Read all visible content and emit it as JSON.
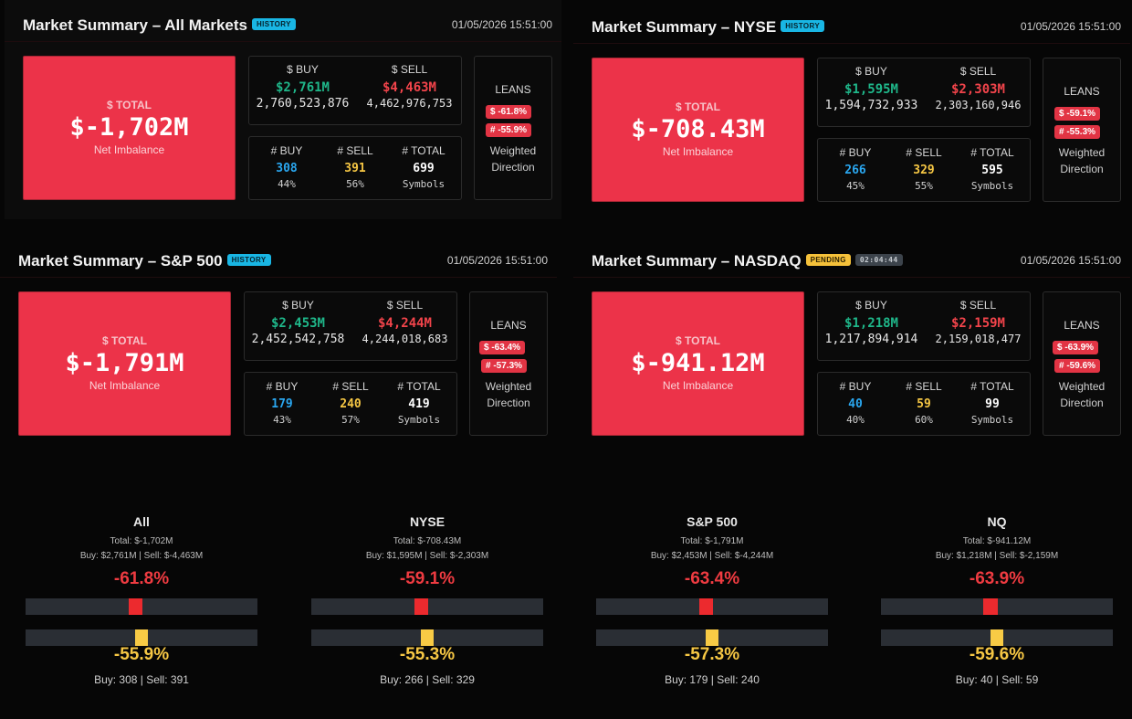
{
  "panels": [
    {
      "title": "Market Summary – All Markets",
      "badge": "HISTORY",
      "timestamp": "01/05/2026 15:51:00",
      "total_label": "$ TOTAL",
      "total_value": "$-1,702M",
      "total_sub": "Net Imbalance",
      "buy_label": "$ BUY",
      "buy_value": "$2,761M",
      "buy_raw": "2,760,523,876",
      "sell_label": "$ SELL",
      "sell_value": "$4,463M",
      "sell_raw": "4,462,976,753",
      "nbuy_label": "# BUY",
      "nbuy_value": "308",
      "nbuy_pct": "44%",
      "nsell_label": "# SELL",
      "nsell_value": "391",
      "nsell_pct": "56%",
      "ntotal_label": "# TOTAL",
      "ntotal_value": "699",
      "ntotal_sub": "Symbols",
      "leans_title": "LEANS",
      "lean_dollar": "$ -61.8%",
      "lean_count": "# -55.9%",
      "leans_foot1": "Weighted",
      "leans_foot2": "Direction"
    },
    {
      "title": "Market Summary – NYSE",
      "badge": "HISTORY",
      "timestamp": "01/05/2026 15:51:00",
      "total_label": "$ TOTAL",
      "total_value": "$-708.43M",
      "total_sub": "Net Imbalance",
      "buy_label": "$ BUY",
      "buy_value": "$1,595M",
      "buy_raw": "1,594,732,933",
      "sell_label": "$ SELL",
      "sell_value": "$2,303M",
      "sell_raw": "2,303,160,946",
      "nbuy_label": "# BUY",
      "nbuy_value": "266",
      "nbuy_pct": "45%",
      "nsell_label": "# SELL",
      "nsell_value": "329",
      "nsell_pct": "55%",
      "ntotal_label": "# TOTAL",
      "ntotal_value": "595",
      "ntotal_sub": "Symbols",
      "leans_title": "LEANS",
      "lean_dollar": "$ -59.1%",
      "lean_count": "# -55.3%",
      "leans_foot1": "Weighted",
      "leans_foot2": "Direction"
    },
    {
      "title": "Market Summary – S&P 500",
      "badge": "HISTORY",
      "timestamp": "01/05/2026 15:51:00",
      "total_label": "$ TOTAL",
      "total_value": "$-1,791M",
      "total_sub": "Net Imbalance",
      "buy_label": "$ BUY",
      "buy_value": "$2,453M",
      "buy_raw": "2,452,542,758",
      "sell_label": "$ SELL",
      "sell_value": "$4,244M",
      "sell_raw": "4,244,018,683",
      "nbuy_label": "# BUY",
      "nbuy_value": "179",
      "nbuy_pct": "43%",
      "nsell_label": "# SELL",
      "nsell_value": "240",
      "nsell_pct": "57%",
      "ntotal_label": "# TOTAL",
      "ntotal_value": "419",
      "ntotal_sub": "Symbols",
      "leans_title": "LEANS",
      "lean_dollar": "$ -63.4%",
      "lean_count": "# -57.3%",
      "leans_foot1": "Weighted",
      "leans_foot2": "Direction"
    },
    {
      "title": "Market Summary – NASDAQ",
      "badge": "PENDING",
      "timer": "02:04:44",
      "timestamp": "01/05/2026 15:51:00",
      "total_label": "$ TOTAL",
      "total_value": "$-941.12M",
      "total_sub": "Net Imbalance",
      "buy_label": "$ BUY",
      "buy_value": "$1,218M",
      "buy_raw": "1,217,894,914",
      "sell_label": "$ SELL",
      "sell_value": "$2,159M",
      "sell_raw": "2,159,018,477",
      "nbuy_label": "# BUY",
      "nbuy_value": "40",
      "nbuy_pct": "40%",
      "nsell_label": "# SELL",
      "nsell_value": "59",
      "nsell_pct": "60%",
      "ntotal_label": "# TOTAL",
      "ntotal_value": "99",
      "ntotal_sub": "Symbols",
      "leans_title": "LEANS",
      "lean_dollar": "$ -63.9%",
      "lean_count": "# -59.6%",
      "leans_foot1": "Weighted",
      "leans_foot2": "Direction"
    }
  ],
  "gauges": [
    {
      "name": "All",
      "total": "Total: $-1,702M",
      "buy_sell": "Buy: $2,761M | Sell: $-4,463M",
      "dollar_pct": "-61.8%",
      "dollar_lean": -0.618,
      "count_pct": "-55.9%",
      "count_lean": -0.559,
      "counts": "Buy: 308 | Sell: 391"
    },
    {
      "name": "NYSE",
      "total": "Total: $-708.43M",
      "buy_sell": "Buy: $1,595M | Sell: $-2,303M",
      "dollar_pct": "-59.1%",
      "dollar_lean": -0.591,
      "count_pct": "-55.3%",
      "count_lean": -0.553,
      "counts": "Buy: 266 | Sell: 329"
    },
    {
      "name": "S&P 500",
      "total": "Total: $-1,791M",
      "buy_sell": "Buy: $2,453M | Sell: $-4,244M",
      "dollar_pct": "-63.4%",
      "dollar_lean": -0.634,
      "count_pct": "-57.3%",
      "count_lean": -0.573,
      "counts": "Buy: 179 | Sell: 240"
    },
    {
      "name": "NQ",
      "total": "Total: $-941.12M",
      "buy_sell": "Buy: $1,218M | Sell: $-2,159M",
      "dollar_pct": "-63.9%",
      "dollar_lean": -0.639,
      "count_pct": "-59.6%",
      "count_lean": -0.596,
      "counts": "Buy: 40 | Sell: 59"
    }
  ],
  "colors": {
    "dollar_bar": "#ec2a2e",
    "count_bar": "#f8cb45"
  }
}
